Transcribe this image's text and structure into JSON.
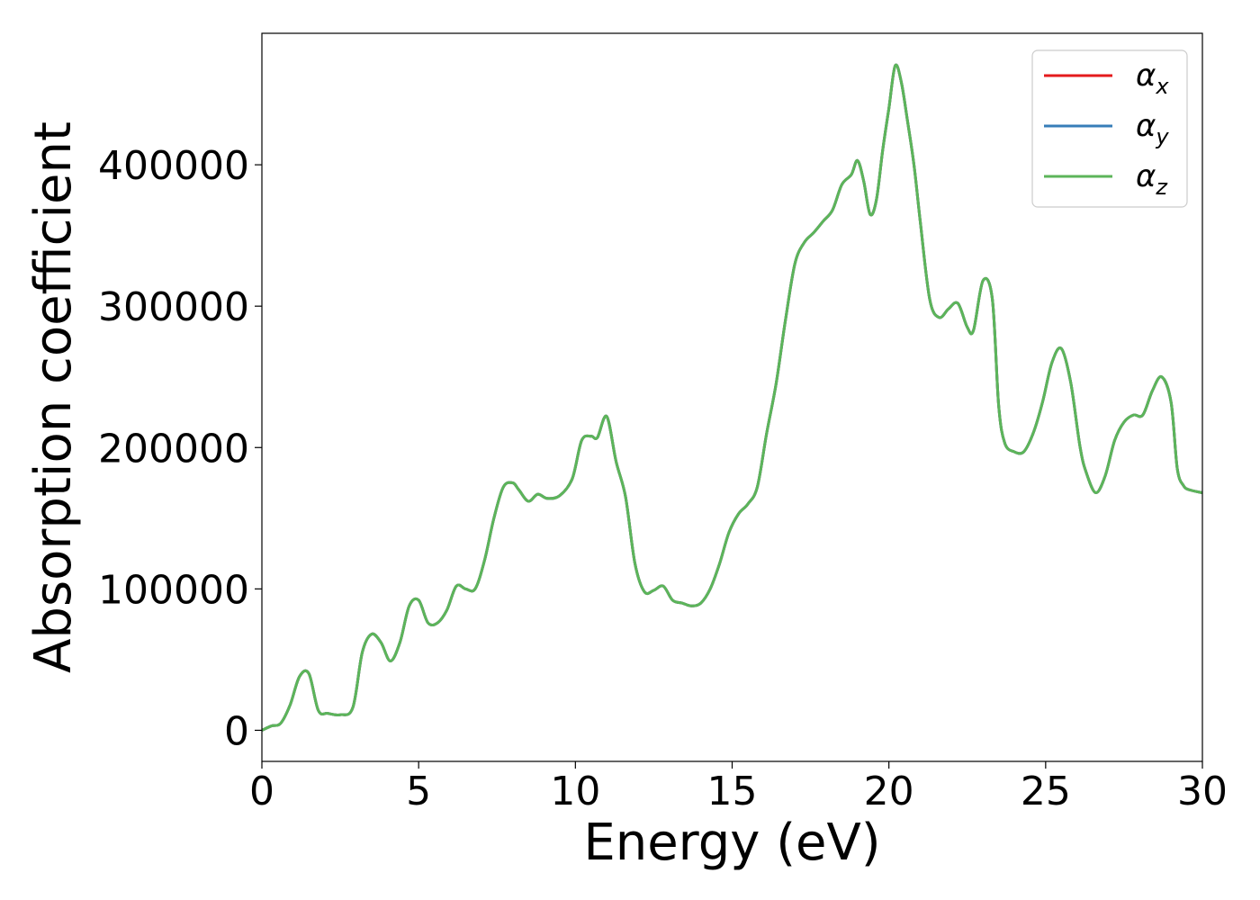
{
  "chart_data": {
    "type": "line",
    "title": "",
    "xlabel": "Energy (eV)",
    "ylabel": "Absorption coefficient",
    "xlim": [
      0,
      30
    ],
    "ylim": [
      -22000,
      493000
    ],
    "xticks": [
      0,
      5,
      10,
      15,
      20,
      25,
      30
    ],
    "yticks": [
      0,
      100000,
      200000,
      300000,
      400000
    ],
    "grid": false,
    "legend_position": "top-right",
    "series": [
      {
        "name": "α",
        "sub": "x",
        "color": "#e41a1c"
      },
      {
        "name": "α",
        "sub": "y",
        "color": "#377eb8"
      },
      {
        "name": "α",
        "sub": "z",
        "color": "#5cb55a"
      }
    ],
    "x": [
      0,
      0.3,
      0.6,
      0.9,
      1.2,
      1.5,
      1.8,
      2.1,
      2.5,
      2.9,
      3.2,
      3.5,
      3.8,
      4.1,
      4.4,
      4.7,
      5.0,
      5.3,
      5.6,
      5.9,
      6.2,
      6.5,
      6.8,
      7.1,
      7.4,
      7.7,
      8.0,
      8.2,
      8.5,
      8.8,
      9.1,
      9.5,
      9.9,
      10.2,
      10.5,
      10.7,
      11.0,
      11.3,
      11.6,
      11.9,
      12.2,
      12.5,
      12.8,
      13.1,
      13.4,
      13.7,
      14.0,
      14.3,
      14.6,
      14.9,
      15.2,
      15.5,
      15.8,
      16.1,
      16.4,
      16.7,
      17.0,
      17.3,
      17.6,
      17.9,
      18.2,
      18.5,
      18.8,
      19.0,
      19.2,
      19.4,
      19.6,
      19.8,
      20.0,
      20.2,
      20.4,
      20.6,
      20.8,
      21.0,
      21.3,
      21.6,
      21.9,
      22.2,
      22.5,
      22.7,
      23.0,
      23.3,
      23.5,
      23.7,
      24.0,
      24.3,
      24.6,
      24.9,
      25.2,
      25.5,
      25.8,
      26.1,
      26.3,
      26.6,
      26.9,
      27.2,
      27.5,
      27.8,
      28.1,
      28.4,
      28.7,
      29.0,
      29.2,
      29.4,
      29.6,
      30.0
    ],
    "y": [
      0,
      3000,
      5000,
      18000,
      38000,
      40000,
      14000,
      12000,
      11000,
      16000,
      55000,
      68000,
      62000,
      49000,
      62000,
      88000,
      92000,
      76000,
      76000,
      85000,
      102000,
      100000,
      100000,
      120000,
      150000,
      172000,
      175000,
      170000,
      162000,
      167000,
      164000,
      166000,
      178000,
      205000,
      208000,
      207000,
      222000,
      190000,
      165000,
      118000,
      98000,
      99000,
      102000,
      92000,
      90000,
      88000,
      90000,
      100000,
      118000,
      140000,
      153000,
      160000,
      172000,
      210000,
      245000,
      290000,
      330000,
      345000,
      352000,
      360000,
      368000,
      386000,
      393000,
      403000,
      388000,
      365000,
      375000,
      410000,
      440000,
      470000,
      458000,
      430000,
      400000,
      360000,
      305000,
      292000,
      298000,
      302000,
      285000,
      283000,
      318000,
      305000,
      230000,
      203000,
      197000,
      197000,
      210000,
      232000,
      260000,
      270000,
      246000,
      200000,
      182000,
      168000,
      180000,
      205000,
      218000,
      223000,
      223000,
      240000,
      250000,
      232000,
      185000,
      173000,
      170000,
      168000
    ]
  }
}
